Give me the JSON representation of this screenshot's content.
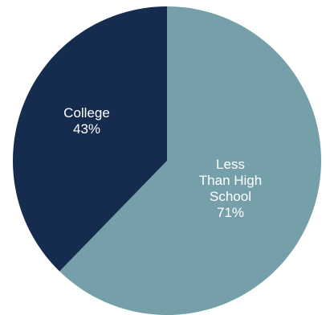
{
  "chart_data": {
    "type": "pie",
    "title": "",
    "slices": [
      {
        "label_lines": [
          "Less",
          "Than High",
          "School"
        ],
        "value_label": "71%",
        "value": 71,
        "color": "#76A0A9"
      },
      {
        "label_lines": [
          "College"
        ],
        "value_label": "43%",
        "value": 43,
        "color": "#152C4F"
      }
    ],
    "start_angle_deg": 0,
    "direction": "clockwise",
    "legend": "none"
  }
}
